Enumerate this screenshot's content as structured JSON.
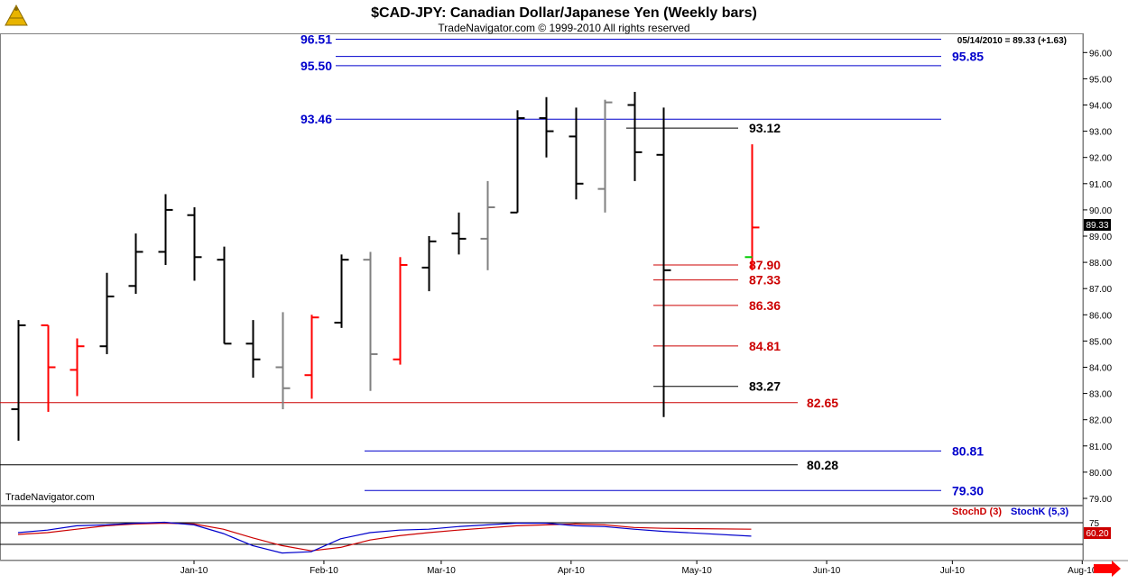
{
  "header": {
    "title": "$CAD-JPY:  Canadian Dollar/Japanese Yen  (Weekly bars)",
    "copyright": "TradeNavigator.com © 1999-2010 All rights reserved",
    "last_quote": "05/14/2010 = 89.33 (+1.63)",
    "watermark": "TradeNavigator.com",
    "current_price_tag": "89.33",
    "stoch_current_tag": "60.20"
  },
  "colors": {
    "up_bar": "#000000",
    "down_bar": "#ff0000",
    "neutral_bar": "#808080",
    "open_marker": "#00cc00",
    "blue_line": "#0000cc",
    "red_line": "#cc0000",
    "stochD": "#cc0000",
    "stochK": "#0000cc"
  },
  "chart_data": [
    {
      "type": "ohlc",
      "title": "$CAD-JPY:  Canadian Dollar/Japanese Yen  (Weekly bars)",
      "ylim": [
        79,
        96.5
      ],
      "yticks": [
        "79.00",
        "80.00",
        "81.00",
        "82.00",
        "83.00",
        "84.00",
        "85.00",
        "86.00",
        "87.00",
        "88.00",
        "89.00",
        "90.00",
        "91.00",
        "92.00",
        "93.00",
        "94.00",
        "95.00",
        "96.00"
      ],
      "months": [
        {
          "label": "Jan-10",
          "date": "2010-01-01"
        },
        {
          "label": "Feb-10",
          "date": "2010-02-01"
        },
        {
          "label": "Mar-10",
          "date": "2010-03-01"
        },
        {
          "label": "Apr-10",
          "date": "2010-04-01"
        },
        {
          "label": "May-10",
          "date": "2010-05-01"
        },
        {
          "label": "Jun-10",
          "date": "2010-06-01"
        },
        {
          "label": "Jul-10",
          "date": "2010-07-01"
        },
        {
          "label": "Aug-10",
          "date": "2010-08-01"
        }
      ],
      "bars": [
        {
          "date": "2009-11-20",
          "open": 82.4,
          "high": 85.8,
          "low": 81.2,
          "close": 85.6,
          "color": "up"
        },
        {
          "date": "2009-11-27",
          "open": 85.6,
          "high": 85.6,
          "low": 82.3,
          "close": 84.0,
          "color": "down"
        },
        {
          "date": "2009-12-04",
          "open": 83.9,
          "high": 85.1,
          "low": 82.9,
          "close": 84.8,
          "color": "down"
        },
        {
          "date": "2009-12-11",
          "open": 84.8,
          "high": 87.6,
          "low": 84.5,
          "close": 86.7,
          "color": "up"
        },
        {
          "date": "2009-12-18",
          "open": 87.1,
          "high": 89.1,
          "low": 86.8,
          "close": 88.4,
          "color": "up"
        },
        {
          "date": "2009-12-25",
          "open": 88.4,
          "high": 90.6,
          "low": 87.9,
          "close": 90.0,
          "color": "up"
        },
        {
          "date": "2010-01-01",
          "open": 89.8,
          "high": 90.1,
          "low": 87.3,
          "close": 88.2,
          "color": "up"
        },
        {
          "date": "2010-01-08",
          "open": 88.1,
          "high": 88.6,
          "low": 84.9,
          "close": 84.9,
          "color": "up"
        },
        {
          "date": "2010-01-15",
          "open": 84.9,
          "high": 85.8,
          "low": 83.6,
          "close": 84.3,
          "color": "up"
        },
        {
          "date": "2010-01-22",
          "open": 84.0,
          "high": 86.1,
          "low": 82.4,
          "close": 83.2,
          "color": "neutral"
        },
        {
          "date": "2010-01-29",
          "open": 83.7,
          "high": 86.0,
          "low": 82.8,
          "close": 85.9,
          "color": "down"
        },
        {
          "date": "2010-02-05",
          "open": 85.7,
          "high": 88.3,
          "low": 85.5,
          "close": 88.1,
          "color": "up"
        },
        {
          "date": "2010-02-12",
          "open": 88.1,
          "high": 88.4,
          "low": 83.1,
          "close": 84.5,
          "color": "neutral"
        },
        {
          "date": "2010-02-19",
          "open": 84.3,
          "high": 88.2,
          "low": 84.1,
          "close": 87.9,
          "color": "down"
        },
        {
          "date": "2010-02-26",
          "open": 87.8,
          "high": 89.0,
          "low": 86.9,
          "close": 88.8,
          "color": "up"
        },
        {
          "date": "2010-03-05",
          "open": 89.1,
          "high": 89.9,
          "low": 88.3,
          "close": 88.9,
          "color": "up"
        },
        {
          "date": "2010-03-12",
          "open": 88.9,
          "high": 91.1,
          "low": 87.7,
          "close": 90.1,
          "color": "neutral"
        },
        {
          "date": "2010-03-19",
          "open": 89.9,
          "high": 93.8,
          "low": 89.9,
          "close": 93.5,
          "color": "up"
        },
        {
          "date": "2010-03-26",
          "open": 93.5,
          "high": 94.3,
          "low": 92.0,
          "close": 93.0,
          "color": "up"
        },
        {
          "date": "2010-04-02",
          "open": 92.8,
          "high": 93.9,
          "low": 90.4,
          "close": 91.0,
          "color": "up"
        },
        {
          "date": "2010-04-09",
          "open": 90.8,
          "high": 94.2,
          "low": 89.9,
          "close": 94.1,
          "color": "neutral"
        },
        {
          "date": "2010-04-16",
          "open": 94.0,
          "high": 94.5,
          "low": 91.1,
          "close": 92.2,
          "color": "up"
        },
        {
          "date": "2010-04-23",
          "open": 92.1,
          "high": 93.9,
          "low": 82.1,
          "close": 87.7,
          "color": "up"
        },
        {
          "date": "2010-05-14",
          "open": 88.2,
          "high": 92.5,
          "low": 87.7,
          "close": 89.33,
          "color": "down",
          "open_marker": true
        }
      ],
      "levels": [
        {
          "value": 96.51,
          "label": "96.51",
          "color": "blue",
          "label_side": "left"
        },
        {
          "value": 95.85,
          "label": "95.85",
          "color": "blue",
          "label_side": "right"
        },
        {
          "value": 95.5,
          "label": "95.50",
          "color": "blue",
          "label_side": "left"
        },
        {
          "value": 93.46,
          "label": "93.46",
          "color": "blue",
          "label_side": "left"
        },
        {
          "value": 93.12,
          "label": "93.12",
          "color": "black",
          "label_side": "mid"
        },
        {
          "value": 87.9,
          "label": "87.90",
          "color": "red",
          "label_side": "mid"
        },
        {
          "value": 87.33,
          "label": "87.33",
          "color": "red",
          "label_side": "mid"
        },
        {
          "value": 86.36,
          "label": "86.36",
          "color": "red",
          "label_side": "mid"
        },
        {
          "value": 84.81,
          "label": "84.81",
          "color": "red",
          "label_side": "mid"
        },
        {
          "value": 83.27,
          "label": "83.27",
          "color": "black",
          "label_side": "mid"
        },
        {
          "value": 82.65,
          "label": "82.65",
          "color": "red",
          "label_side": "mid"
        },
        {
          "value": 80.81,
          "label": "80.81",
          "color": "blue",
          "label_side": "right"
        },
        {
          "value": 80.28,
          "label": "80.28",
          "color": "black",
          "label_side": "mid"
        },
        {
          "value": 79.3,
          "label": "79.30",
          "color": "blue",
          "label_side": "right"
        }
      ]
    },
    {
      "type": "line",
      "title": "",
      "legend": [
        "StochD (3)",
        "StochK (5,3)"
      ],
      "ylim": [
        0,
        100
      ],
      "ref_line": 75,
      "series": [
        {
          "name": "StochD (3)",
          "values": [
            48,
            52,
            60,
            68,
            72,
            74,
            72,
            60,
            40,
            22,
            10,
            18,
            35,
            45,
            52,
            58,
            63,
            68,
            70,
            72,
            70,
            64,
            62,
            60
          ]
        },
        {
          "name": "StochK (5,3)",
          "values": [
            52,
            58,
            68,
            70,
            74,
            76,
            70,
            50,
            22,
            5,
            8,
            38,
            52,
            58,
            60,
            66,
            70,
            74,
            74,
            68,
            66,
            60,
            55,
            44
          ]
        }
      ],
      "legend_labels": {
        "d": "StochD (3)",
        "k": "StochK (5,3)"
      },
      "tick_label": "75"
    }
  ]
}
